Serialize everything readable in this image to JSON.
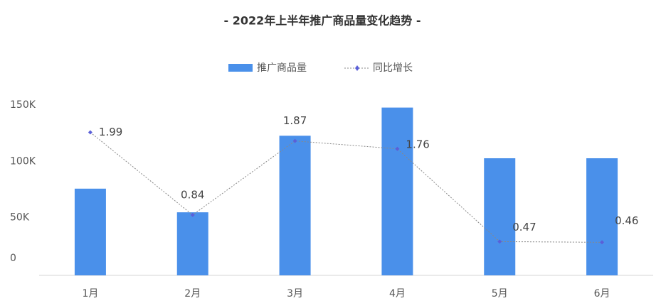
{
  "chart_data": {
    "type": "bar-line",
    "title": "- 2022年上半年推广商品量变化趋势 -",
    "categories": [
      "1月",
      "2月",
      "3月",
      "4月",
      "5月",
      "6月"
    ],
    "series": [
      {
        "name": "推广商品量",
        "type": "bar",
        "color": "#4a90ea",
        "values": [
          77000,
          56000,
          124000,
          149000,
          104000,
          104000
        ]
      },
      {
        "name": "同比增长",
        "type": "line",
        "axis": "y2",
        "color": "#5a5fd8",
        "values": [
          1.99,
          0.84,
          1.87,
          1.76,
          0.47,
          0.46
        ]
      }
    ],
    "ylim": [
      0,
      150000
    ],
    "yticks": [
      0,
      {
        "value": 50000,
        "label": "50K"
      },
      {
        "value": 100000,
        "label": "100K"
      },
      {
        "value": 150000,
        "label": "150K"
      }
    ],
    "y2lim": [
      0,
      2.35
    ]
  }
}
